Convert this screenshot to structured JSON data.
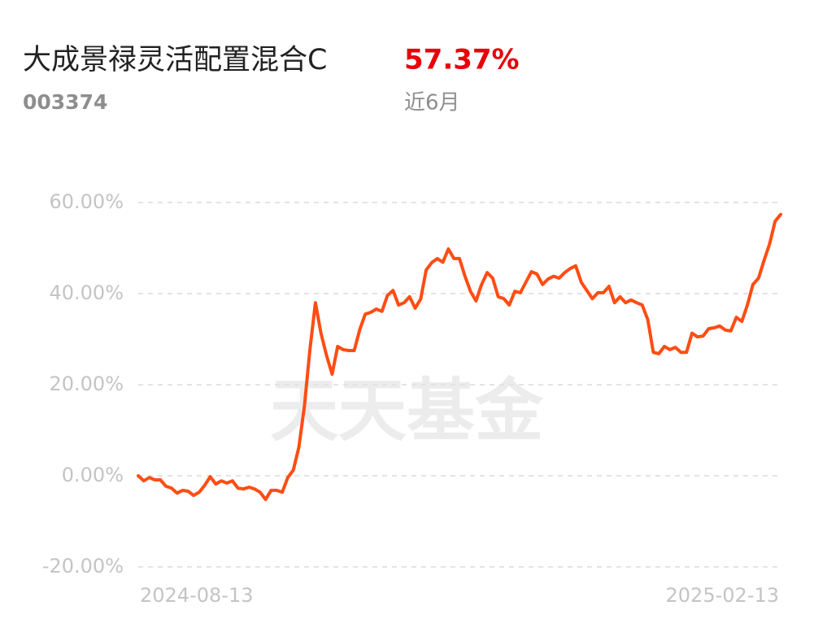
{
  "header": {
    "title": "大成景禄灵活配置混合C",
    "return": "57.37%",
    "code": "003374",
    "period": "近6月"
  },
  "watermark": "天天基金",
  "chart_data": {
    "type": "line",
    "categories": [
      "2024-08-13",
      null,
      null,
      null,
      null,
      null,
      null,
      null,
      null,
      null,
      null,
      null,
      null,
      null,
      null,
      null,
      null,
      null,
      null,
      null,
      null,
      null,
      null,
      null,
      null,
      null,
      null,
      null,
      null,
      null,
      null,
      null,
      null,
      null,
      null,
      null,
      null,
      null,
      null,
      null,
      null,
      null,
      null,
      null,
      null,
      null,
      null,
      null,
      null,
      null,
      null,
      null,
      null,
      null,
      null,
      null,
      null,
      null,
      null,
      null,
      null,
      null,
      null,
      null,
      null,
      null,
      null,
      null,
      null,
      null,
      null,
      null,
      null,
      null,
      null,
      null,
      null,
      null,
      null,
      null,
      null,
      null,
      null,
      null,
      null,
      null,
      null,
      null,
      null,
      null,
      null,
      null,
      null,
      null,
      null,
      null,
      null,
      null,
      null,
      null,
      null,
      null,
      null,
      null,
      null,
      null,
      null,
      null,
      null,
      null,
      null,
      null,
      null,
      null,
      null,
      null,
      "2025-02-13"
    ],
    "values": [
      0,
      -1.1,
      -0.4,
      -0.9,
      -0.9,
      -2.3,
      -2.7,
      -3.8,
      -3.2,
      -3.4,
      -4.3,
      -3.6,
      -2.1,
      -0.2,
      -1.8,
      -1.1,
      -1.6,
      -1.1,
      -2.7,
      -2.9,
      -2.5,
      -2.9,
      -3.6,
      -5.2,
      -3.2,
      -3.2,
      -3.6,
      -0.4,
      1.25,
      6.25,
      15.2,
      27.7,
      38.0,
      31.3,
      26.4,
      22.3,
      28.4,
      27.7,
      27.5,
      27.5,
      32.1,
      35.5,
      35.9,
      36.6,
      36.1,
      39.6,
      40.7,
      37.5,
      38.0,
      39.3,
      36.8,
      38.8,
      45.2,
      46.8,
      47.7,
      46.9,
      49.8,
      47.7,
      47.7,
      43.8,
      40.5,
      38.4,
      42.0,
      44.6,
      43.4,
      39.3,
      38.9,
      37.5,
      40.5,
      40.2,
      42.5,
      44.8,
      44.3,
      42.0,
      43.2,
      43.8,
      43.4,
      44.6,
      45.5,
      46.1,
      42.5,
      40.7,
      38.9,
      40.2,
      40.2,
      41.6,
      38.0,
      39.3,
      38.0,
      38.6,
      38.0,
      37.5,
      34.3,
      27.1,
      26.8,
      28.4,
      27.7,
      28.2,
      27.1,
      27.1,
      31.3,
      30.5,
      30.7,
      32.3,
      32.5,
      32.9,
      32.0,
      31.8,
      34.8,
      33.9,
      37.5,
      42.0,
      43.4,
      47.3,
      50.9,
      55.9,
      57.37
    ],
    "color": "#ff4d14",
    "ylim": [
      -20,
      60
    ],
    "yticks": [
      {
        "value": -20,
        "label": "-20.00%"
      },
      {
        "value": 0,
        "label": "0.00%"
      },
      {
        "value": 20,
        "label": "20.00%"
      },
      {
        "value": 40,
        "label": "40.00%"
      },
      {
        "value": 60,
        "label": "60.00%"
      }
    ],
    "grid": true
  }
}
